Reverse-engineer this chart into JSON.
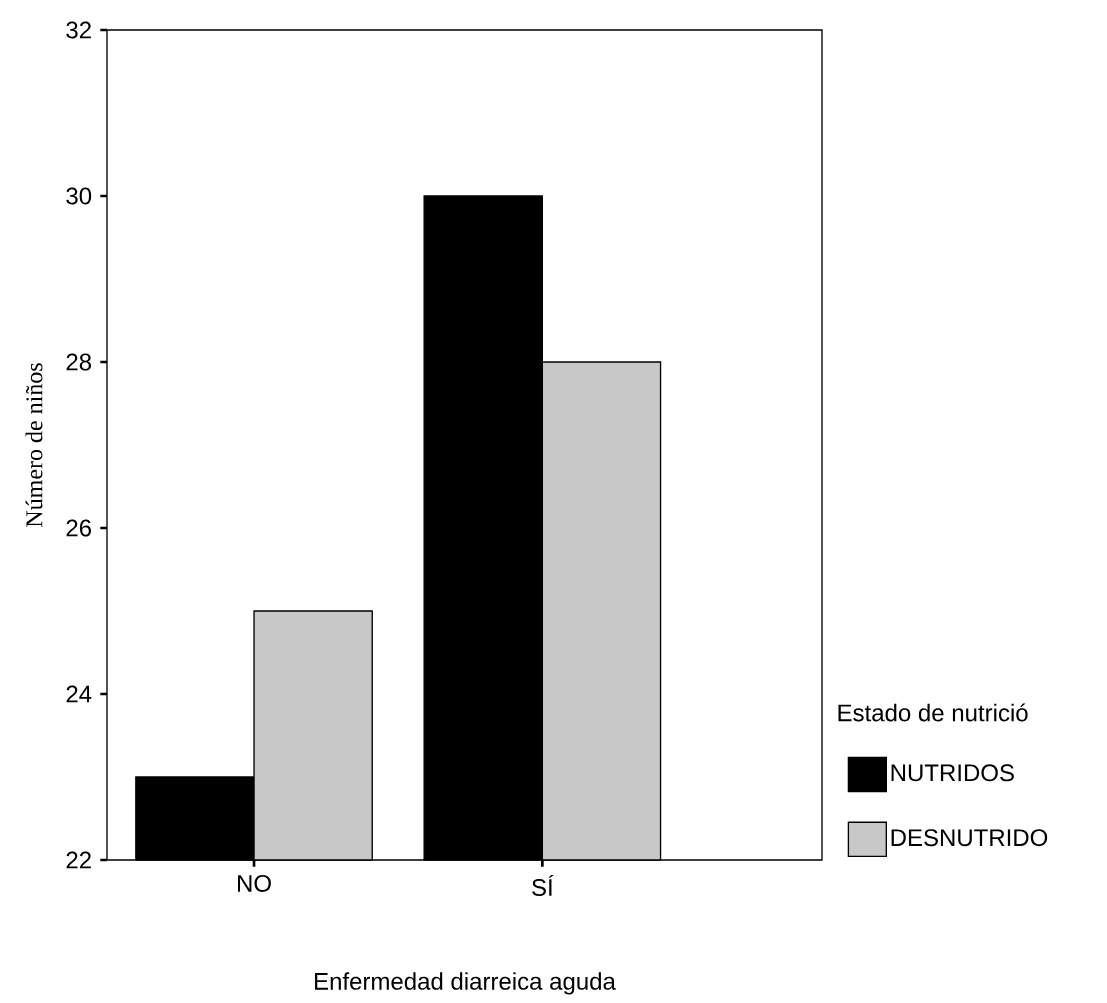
{
  "chart_data": {
    "type": "bar",
    "xlabel": "Enfermedad diarreica aguda",
    "ylabel": "Número de niños",
    "legend_title": "Estado de nutrició",
    "categories": [
      "NO",
      "SÍ"
    ],
    "series": [
      {
        "name": "NUTRIDOS",
        "color": "#000000",
        "values": [
          23,
          30
        ]
      },
      {
        "name": "DESNUTRIDO",
        "color": "#c8c8c8",
        "values": [
          25,
          28
        ]
      }
    ],
    "ylim": [
      22,
      32
    ],
    "yticks": [
      22,
      24,
      26,
      28,
      30,
      32
    ],
    "grid": false,
    "legend": "right"
  }
}
